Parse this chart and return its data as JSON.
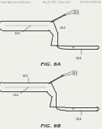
{
  "bg_color": "#f0f0eb",
  "line_color": "#404040",
  "text_color": "#404040",
  "label_color": "#888888",
  "header_text": "Patent Application Publication",
  "header_date": "May 14, 2015",
  "header_sheet": "Sheet 4 of 8",
  "header_num": "US 2015/0133867 A1",
  "fig_a_label": "FIG. 6A",
  "fig_b_label": "FIG. 6B"
}
